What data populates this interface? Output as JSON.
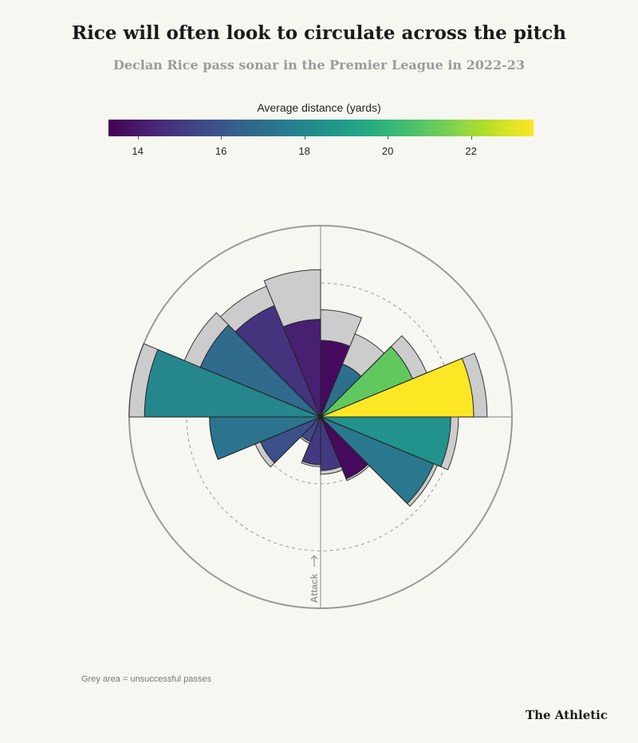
{
  "title": "Rice will often look to circulate across the pitch",
  "subtitle": "Declan Rice pass sonar in the Premier League in 2022-23",
  "legend": {
    "title": "Average distance (yards)",
    "min": 13.3,
    "max": 23.5,
    "ticks": [
      14,
      16,
      18,
      20,
      22
    ]
  },
  "direction_label": "Attack",
  "footnote": "Grey area = unsuccessful passes",
  "brand": "The Athletic",
  "colors": {
    "background": "#f7f7f2",
    "unsuccessful": "#cccccc",
    "axis": "#999999"
  },
  "chart_data": {
    "type": "polar-bar",
    "orientation": "attack direction up",
    "radial_max": 100,
    "sector_width_deg": 22.5,
    "sectors": [
      {
        "angle": 11.25,
        "total": 56,
        "successful": 40,
        "avg_distance": 13.6
      },
      {
        "angle": 33.75,
        "total": 47,
        "successful": 30,
        "avg_distance": 17.0
      },
      {
        "angle": 56.25,
        "total": 60,
        "successful": 52,
        "avg_distance": 21.0
      },
      {
        "angle": 78.75,
        "total": 87,
        "successful": 80,
        "avg_distance": 23.5
      },
      {
        "angle": 101.25,
        "total": 72,
        "successful": 68,
        "avg_distance": 18.5
      },
      {
        "angle": 123.75,
        "total": 66,
        "successful": 64,
        "avg_distance": 17.4
      },
      {
        "angle": 146.25,
        "total": 36,
        "successful": 35,
        "avg_distance": 13.6
      },
      {
        "angle": 168.75,
        "total": 30,
        "successful": 28,
        "avg_distance": 15.0
      },
      {
        "angle": 191.25,
        "total": 26,
        "successful": 25,
        "avg_distance": 15.0
      },
      {
        "angle": 213.75,
        "total": 15,
        "successful": 14,
        "avg_distance": 15.5
      },
      {
        "angle": 236.25,
        "total": 37,
        "successful": 34,
        "avg_distance": 15.8
      },
      {
        "angle": 258.75,
        "total": 58,
        "successful": 58,
        "avg_distance": 17.2
      },
      {
        "angle": 281.25,
        "total": 100,
        "successful": 92,
        "avg_distance": 18.0
      },
      {
        "angle": 303.75,
        "total": 77,
        "successful": 68,
        "avg_distance": 16.8
      },
      {
        "angle": 326.25,
        "total": 74,
        "successful": 63,
        "avg_distance": 14.8
      },
      {
        "angle": 348.75,
        "total": 77,
        "successful": 51,
        "avg_distance": 14.2
      }
    ]
  }
}
